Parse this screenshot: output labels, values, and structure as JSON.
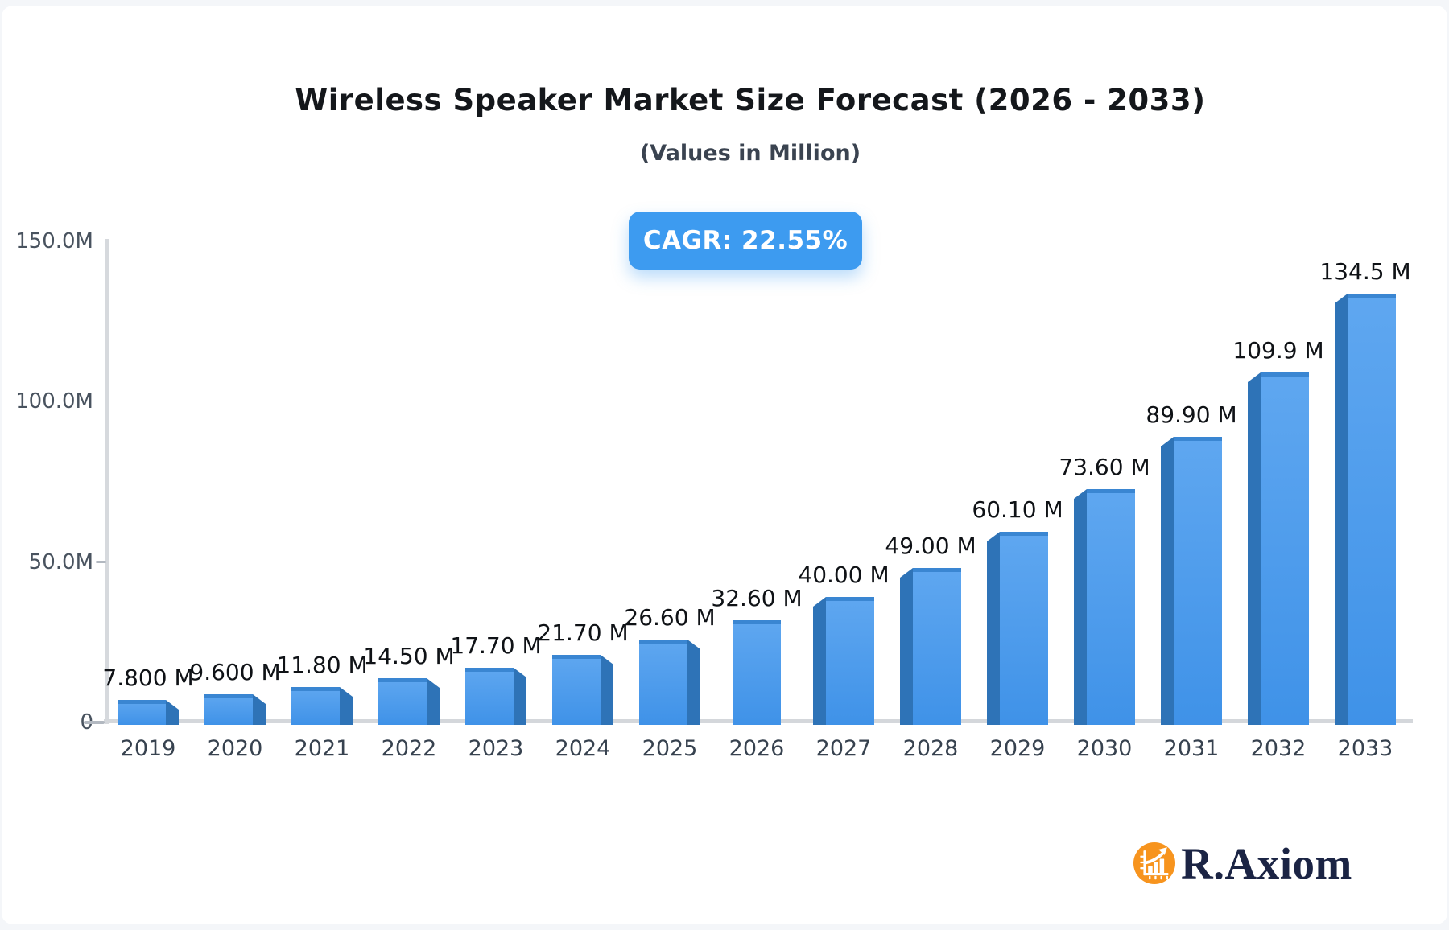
{
  "page": {
    "background": "#f4f6f9",
    "card_background": "#ffffff"
  },
  "header": {
    "title": "Wireless Speaker Market Size Forecast (2026 - 2033)",
    "subtitle": "(Values in Million)"
  },
  "badge": {
    "label": "CAGR: 22.55%",
    "background": "#3d9bf0",
    "text_color": "#ffffff"
  },
  "chart_data": {
    "type": "bar",
    "title": "Wireless Speaker Market Size Forecast (2026 - 2033)",
    "subtitle": "(Values in Million)",
    "unit": "Million",
    "categories": [
      "2019",
      "2020",
      "2021",
      "2022",
      "2023",
      "2024",
      "2025",
      "2026",
      "2027",
      "2028",
      "2029",
      "2030",
      "2031",
      "2032",
      "2033"
    ],
    "values": [
      7.8,
      9.6,
      11.8,
      14.5,
      17.7,
      21.7,
      26.6,
      32.6,
      40.0,
      49.0,
      60.1,
      73.6,
      89.9,
      109.9,
      134.5
    ],
    "value_labels": [
      "7.800 M",
      "9.600 M",
      "11.80 M",
      "14.50 M",
      "17.70 M",
      "21.70 M",
      "26.60 M",
      "32.60 M",
      "40.00 M",
      "49.00 M",
      "60.10 M",
      "73.60 M",
      "89.90 M",
      "109.9 M",
      "134.5 M"
    ],
    "yticks": [
      {
        "label": "150.0M",
        "value": 150
      },
      {
        "label": "100.0M",
        "value": 100
      },
      {
        "label": "50.0M",
        "value": 50
      },
      {
        "label": "0",
        "value": 0
      }
    ],
    "ylim": [
      0,
      150
    ],
    "grid": false,
    "legend": false,
    "bar_style": "3d-center-perspective",
    "colors": {
      "face_top": "#5fa7f0",
      "face_bottom": "#3f92e8",
      "side": "#2e73b7",
      "top_edge": "#3a86d2",
      "axis_line": "#d6d9dd",
      "value_label": "#0f1216",
      "year_label": "#37424f",
      "ytick_label": "#49535f"
    }
  },
  "logo": {
    "text": "R.Axiom",
    "icon": "bar-chart-growth-icon",
    "circle_color": "#f7941e",
    "icon_color": "#ffffff",
    "text_color": "#1b2444"
  }
}
